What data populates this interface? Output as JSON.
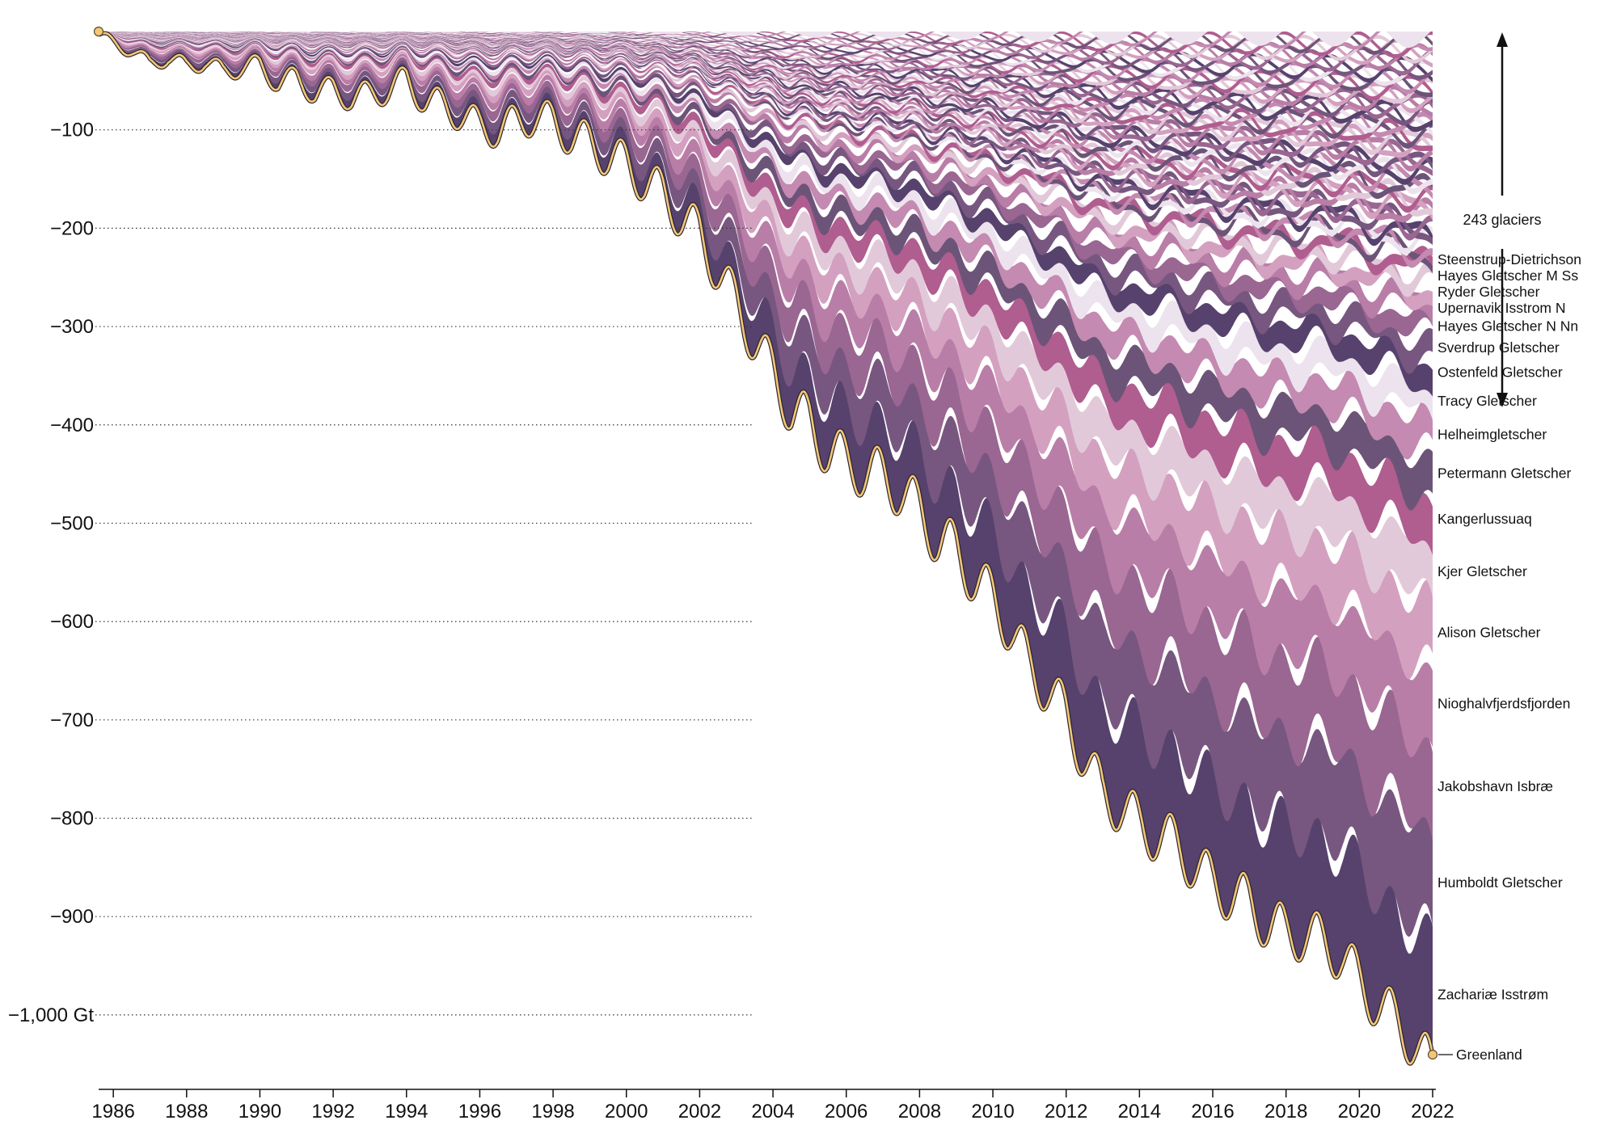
{
  "chart_data": {
    "type": "area",
    "y_unit": "Gt",
    "xlim": [
      1985.6,
      2022.0
    ],
    "ylim": [
      -1065,
      0
    ],
    "grid": "horizontal-dotted",
    "x_ticks": [
      "1986",
      "1988",
      "1990",
      "1992",
      "1994",
      "1996",
      "1998",
      "2000",
      "2002",
      "2004",
      "2006",
      "2008",
      "2010",
      "2012",
      "2014",
      "2016",
      "2018",
      "2020",
      "2022"
    ],
    "y_ticks": [
      {
        "value": -100,
        "label": "−100"
      },
      {
        "value": -200,
        "label": "−200"
      },
      {
        "value": -300,
        "label": "−300"
      },
      {
        "value": -400,
        "label": "−400"
      },
      {
        "value": -500,
        "label": "−500"
      },
      {
        "value": -600,
        "label": "−600"
      },
      {
        "value": -700,
        "label": "−700"
      },
      {
        "value": -800,
        "label": "−800"
      },
      {
        "value": -900,
        "label": "−900"
      },
      {
        "value": -1000,
        "label": "−1,000 Gt"
      }
    ],
    "annotation": "243 glaciers",
    "total": {
      "name": "Greenland",
      "color": "#f3c776",
      "x": [
        1985.6,
        1986,
        1986.5,
        1987,
        1987.5,
        1988,
        1988.5,
        1989,
        1989.5,
        1990,
        1990.5,
        1991,
        1991.5,
        1992,
        1992.5,
        1993,
        1993.5,
        1994,
        1994.5,
        1995,
        1995.5,
        1996,
        1996.5,
        1997,
        1997.5,
        1998,
        1998.5,
        1999,
        1999.5,
        2000,
        2000.5,
        2001,
        2001.5,
        2002,
        2002.5,
        2003,
        2003.5,
        2004,
        2004.5,
        2005,
        2005.5,
        2006,
        2006.5,
        2007,
        2007.5,
        2008,
        2008.5,
        2009,
        2009.5,
        2010,
        2010.5,
        2011,
        2011.5,
        2012,
        2012.5,
        2013,
        2013.5,
        2014,
        2014.5,
        2015,
        2015.5,
        2016,
        2016.5,
        2017,
        2017.5,
        2018,
        2018.5,
        2019,
        2019.5,
        2020,
        2020.5,
        2021,
        2021.5,
        2022
      ],
      "y": [
        0,
        -8,
        -15,
        -28,
        -22,
        -30,
        -25,
        -35,
        -30,
        -28,
        -45,
        -40,
        -55,
        -50,
        -60,
        -55,
        -50,
        -40,
        -60,
        -65,
        -75,
        -85,
        -90,
        -80,
        -75,
        -80,
        -95,
        -100,
        -115,
        -120,
        -140,
        -150,
        -175,
        -190,
        -230,
        -260,
        -300,
        -330,
        -370,
        -380,
        -410,
        -420,
        -430,
        -435,
        -450,
        -470,
        -500,
        -510,
        -540,
        -560,
        -590,
        -630,
        -650,
        -680,
        -720,
        -760,
        -770,
        -790,
        -800,
        -810,
        -830,
        -850,
        -860,
        -870,
        -890,
        -900,
        -900,
        -910,
        -920,
        -950,
        -970,
        -990,
        -1010,
        -1040
      ]
    },
    "glaciers": [
      {
        "name": "Zachariæ Isstrøm",
        "end_value": -120
      },
      {
        "name": "Humboldt Gletscher",
        "end_value": -100
      },
      {
        "name": "Jakobshavn Isbræ",
        "end_value": -85
      },
      {
        "name": "Nioghalvfjerdsfjorden",
        "end_value": -45
      },
      {
        "name": "Alison Gletscher",
        "end_value": -30
      },
      {
        "name": "Kjer Gletscher",
        "end_value": -30
      },
      {
        "name": "Kangerlussuaq",
        "end_value": -28
      },
      {
        "name": "Petermann Gletscher",
        "end_value": -25
      },
      {
        "name": "Helheimgletscher",
        "end_value": -20
      },
      {
        "name": "Tracy Gletscher",
        "end_value": -22
      },
      {
        "name": "Ostenfeld Gletscher",
        "end_value": -18
      },
      {
        "name": "Sverdrup Gletscher",
        "end_value": -18
      },
      {
        "name": "Hayes Gletscher N Nn",
        "end_value": -17
      },
      {
        "name": "Upernavik Isstrom N",
        "end_value": -17
      },
      {
        "name": "Ryder Gletscher",
        "end_value": -16
      },
      {
        "name": "Hayes Gletscher M Ss",
        "end_value": -15
      },
      {
        "name": "Steenstrup-Dietrichson",
        "end_value": -14
      }
    ],
    "palette": [
      "#56426d",
      "#77577f",
      "#9a6692",
      "#b97ea7",
      "#d4a0c0",
      "#e2c9d9",
      "#b05d8f",
      "#6c5478",
      "#c48ab1",
      "#ede3ee"
    ]
  }
}
